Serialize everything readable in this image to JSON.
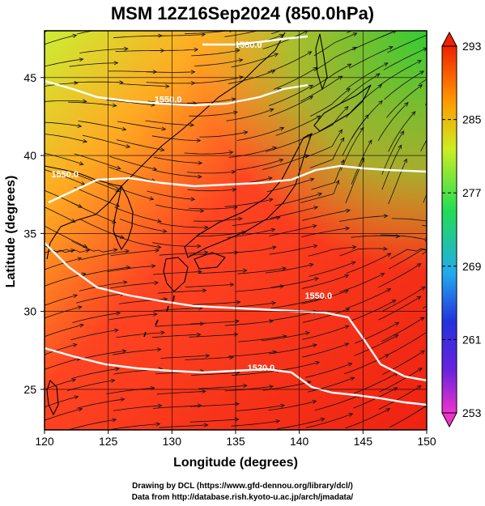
{
  "title": "MSM 12Z16Sep2024 (850.0hPa)",
  "credits": [
    "Drawing by DCL (https://www.gfd-dennou.org/library/dcl/)",
    "Data from http://database.rish.kyoto-u.ac.jp/arch/jmadata/"
  ],
  "map": {
    "projection": "equirectangular",
    "lon_range": [
      120,
      150
    ],
    "lat_range": [
      22.4,
      48
    ],
    "xlabel": "Longitude (degrees)",
    "ylabel": "Latitude  (degrees)",
    "x_ticks": [
      "120",
      "125",
      "130",
      "135",
      "140",
      "145",
      "150"
    ],
    "y_ticks": [
      "25",
      "30",
      "35",
      "40",
      "45"
    ],
    "grid": true,
    "field": "temperature (shaded), wind streamlines, geopotential height contours (white)",
    "contour_labels": [
      {
        "text": "1520.0",
        "lon": 137.0,
        "lat": 26.2
      },
      {
        "text": "1550.0",
        "lon": 121.6,
        "lat": 38.6
      },
      {
        "text": "1550.0",
        "lon": 141.5,
        "lat": 30.8
      },
      {
        "text": "1550.0",
        "lon": 129.7,
        "lat": 43.4
      },
      {
        "text": "1580.0",
        "lon": 136.0,
        "lat": 46.9
      }
    ]
  },
  "colorbar": {
    "labels": [
      "293",
      "285",
      "277",
      "269",
      "261",
      "253"
    ],
    "min": 253,
    "max": 293,
    "colors": [
      "#ee33cc",
      "#2222dd",
      "#22aaee",
      "#22dd55",
      "#ccee22",
      "#ff9900",
      "#ff3300",
      "#ee2200"
    ]
  }
}
